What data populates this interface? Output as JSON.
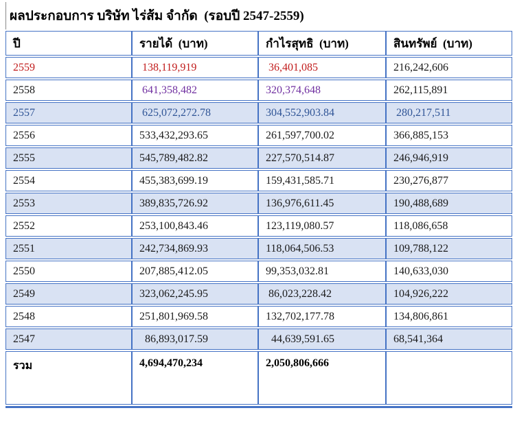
{
  "title": "ผลประกอบการ บริษัท ไร่ส้ม จำกัด  (รอบปี 2547-2559)",
  "colors": {
    "border_blue": "#4472C4",
    "row_shade": "#D9E2F3",
    "red": "#C11B1B",
    "purple": "#7030A0",
    "navy": "#2F5496",
    "black": "#1A1A1A"
  },
  "table": {
    "headers": [
      {
        "label": "ปี"
      },
      {
        "label": "รายได้  (บาท)"
      },
      {
        "label": "กำไรสุทธิ  (บาท)"
      },
      {
        "label": "สินทรัพย์  (บาท)"
      }
    ],
    "rows": [
      {
        "year": "2559",
        "revenue": " 138,119,919",
        "profit": " 36,401,085",
        "assets": "216,242,606",
        "shaded": false,
        "text_colors": {
          "year": "red",
          "revenue": "red",
          "profit": "red",
          "assets": "black"
        }
      },
      {
        "year": "2558",
        "revenue": " 641,358,482",
        "profit": "320,374,648",
        "assets": "262,115,891",
        "shaded": false,
        "text_colors": {
          "year": "black",
          "revenue": "purple",
          "profit": "purple",
          "assets": "black"
        }
      },
      {
        "year": "2557",
        "revenue": " 625,072,272.78",
        "profit": "304,552,903.84",
        "assets": " 280,217,511",
        "shaded": true,
        "text_colors": {
          "year": "navy",
          "revenue": "navy",
          "profit": "navy",
          "assets": "navy"
        }
      },
      {
        "year": "2556",
        "revenue": "533,432,293.65",
        "profit": "261,597,700.02",
        "assets": "366,885,153",
        "shaded": false,
        "text_colors": {
          "year": "black",
          "revenue": "black",
          "profit": "black",
          "assets": "black"
        }
      },
      {
        "year": "2555",
        "revenue": "545,789,482.82",
        "profit": "227,570,514.87",
        "assets": "246,946,919",
        "shaded": true,
        "text_colors": {
          "year": "black",
          "revenue": "black",
          "profit": "black",
          "assets": "black"
        }
      },
      {
        "year": "2554",
        "revenue": "455,383,699.19",
        "profit": "159,431,585.71",
        "assets": "230,276,877",
        "shaded": false,
        "text_colors": {
          "year": "black",
          "revenue": "black",
          "profit": "black",
          "assets": "black"
        }
      },
      {
        "year": "2553",
        "revenue": "389,835,726.92",
        "profit": "136,976,611.45",
        "assets": "190,488,689",
        "shaded": true,
        "text_colors": {
          "year": "black",
          "revenue": "black",
          "profit": "black",
          "assets": "black"
        }
      },
      {
        "year": "2552",
        "revenue": "253,100,843.46",
        "profit": "123,119,080.57",
        "assets": "118,086,658",
        "shaded": false,
        "text_colors": {
          "year": "black",
          "revenue": "black",
          "profit": "black",
          "assets": "black"
        }
      },
      {
        "year": "2551",
        "revenue": "242,734,869.93",
        "profit": "118,064,506.53",
        "assets": "109,788,122",
        "shaded": true,
        "text_colors": {
          "year": "black",
          "revenue": "black",
          "profit": "black",
          "assets": "black"
        }
      },
      {
        "year": "2550",
        "revenue": "207,885,412.05",
        "profit": "99,353,032.81",
        "assets": "140,633,030",
        "shaded": false,
        "text_colors": {
          "year": "black",
          "revenue": "black",
          "profit": "black",
          "assets": "black"
        }
      },
      {
        "year": "2549",
        "revenue": "323,062,245.95",
        "profit": " 86,023,228.42",
        "assets": "104,926,222",
        "shaded": true,
        "text_colors": {
          "year": "black",
          "revenue": "black",
          "profit": "black",
          "assets": "black"
        }
      },
      {
        "year": "2548",
        "revenue": "251,801,969.58",
        "profit": "132,702,177.78",
        "assets": "134,806,861",
        "shaded": false,
        "text_colors": {
          "year": "black",
          "revenue": "black",
          "profit": "black",
          "assets": "black"
        }
      },
      {
        "year": "2547",
        "revenue": "  86,893,017.59",
        "profit": "  44,639,591.65",
        "assets": "68,541,364",
        "shaded": true,
        "text_colors": {
          "year": "black",
          "revenue": "black",
          "profit": "black",
          "assets": "black"
        }
      }
    ],
    "total_row": {
      "label": "รวม",
      "revenue": "4,694,470,234",
      "profit": "2,050,806,666",
      "assets": ""
    }
  }
}
